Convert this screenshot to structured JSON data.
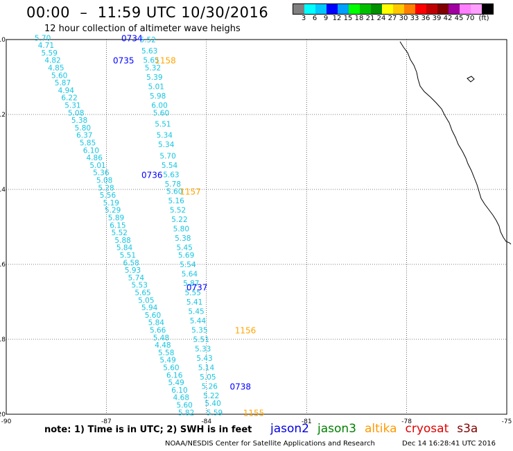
{
  "title": "00:00  –  11:59 UTC 10/30/2016",
  "subtitle": "12 hour collection of altimeter wave heighs",
  "legend": {
    "colors": [
      "#808080",
      "#00ffff",
      "#00c8ff",
      "#0000ff",
      "#00a0ff",
      "#00ff00",
      "#00c000",
      "#009000",
      "#ffff00",
      "#ffc800",
      "#ff8000",
      "#ff0000",
      "#c00000",
      "#800000",
      "#a000a0",
      "#ff80ff",
      "#ffa0ff",
      "#000000"
    ],
    "labels": [
      "3",
      "6",
      "9",
      "12",
      "15",
      "18",
      "21",
      "24",
      "27",
      "30",
      "33",
      "36",
      "39",
      "42",
      "45",
      "70",
      "(ft)"
    ]
  },
  "axes": {
    "x_ticks": [
      "-90",
      "-87",
      "-84",
      "-81",
      "-78",
      "-75"
    ],
    "y_ticks": [
      "10",
      "12",
      "14",
      "16",
      "18",
      "20"
    ]
  },
  "pass_labels": [
    {
      "text": "0734",
      "color": "#0000ff",
      "lon": -86.55,
      "lat": 9.95
    },
    {
      "text": "0735",
      "color": "#0000ff",
      "lon": -86.8,
      "lat": 10.55
    },
    {
      "text": "1158",
      "color": "#ffa500",
      "lon": -85.55,
      "lat": 10.55
    },
    {
      "text": "0736",
      "color": "#0000ff",
      "lon": -85.95,
      "lat": 13.6
    },
    {
      "text": "1157",
      "color": "#ffa500",
      "lon": -84.8,
      "lat": 14.05
    },
    {
      "text": "0737",
      "color": "#0000ff",
      "lon": -84.6,
      "lat": 16.6
    },
    {
      "text": "1156",
      "color": "#ffa500",
      "lon": -83.15,
      "lat": 17.75
    },
    {
      "text": "0738",
      "color": "#0000ff",
      "lon": -83.3,
      "lat": 19.25
    },
    {
      "text": "1155",
      "color": "#ffa500",
      "lon": -82.9,
      "lat": 19.95
    }
  ],
  "wave_labels": [
    {
      "t": "5.70",
      "lon": -89.15,
      "lat": 9.95
    },
    {
      "t": "4.71",
      "lon": -89.05,
      "lat": 10.15
    },
    {
      "t": "5.59",
      "lon": -88.95,
      "lat": 10.35
    },
    {
      "t": "4.82",
      "lon": -88.85,
      "lat": 10.55
    },
    {
      "t": "4.85",
      "lon": -88.75,
      "lat": 10.75
    },
    {
      "t": "5.60",
      "lon": -88.65,
      "lat": 10.95
    },
    {
      "t": "5.87",
      "lon": -88.55,
      "lat": 11.15
    },
    {
      "t": "4.94",
      "lon": -88.45,
      "lat": 11.35
    },
    {
      "t": "6.22",
      "lon": -88.35,
      "lat": 11.55
    },
    {
      "t": "5.31",
      "lon": -88.25,
      "lat": 11.75
    },
    {
      "t": "5.08",
      "lon": -88.15,
      "lat": 11.95
    },
    {
      "t": "5.38",
      "lon": -88.05,
      "lat": 12.15
    },
    {
      "t": "5.80",
      "lon": -87.95,
      "lat": 12.35
    },
    {
      "t": "6.37",
      "lon": -87.9,
      "lat": 12.55
    },
    {
      "t": "5.85",
      "lon": -87.8,
      "lat": 12.75
    },
    {
      "t": "6.10",
      "lon": -87.7,
      "lat": 12.95
    },
    {
      "t": "4.86",
      "lon": -87.6,
      "lat": 13.15
    },
    {
      "t": "5.01",
      "lon": -87.5,
      "lat": 13.35
    },
    {
      "t": "5.36",
      "lon": -87.4,
      "lat": 13.55
    },
    {
      "t": "5.08",
      "lon": -87.3,
      "lat": 13.75
    },
    {
      "t": "5.28",
      "lon": -87.25,
      "lat": 13.95
    },
    {
      "t": "5.56",
      "lon": -87.2,
      "lat": 14.15
    },
    {
      "t": "5.19",
      "lon": -87.1,
      "lat": 14.35
    },
    {
      "t": "5.29",
      "lon": -87.05,
      "lat": 14.55
    },
    {
      "t": "5.89",
      "lon": -86.95,
      "lat": 14.75
    },
    {
      "t": "6.15",
      "lon": -86.9,
      "lat": 14.95
    },
    {
      "t": "5.52",
      "lon": -86.85,
      "lat": 15.15
    },
    {
      "t": "5.88",
      "lon": -86.75,
      "lat": 15.35
    },
    {
      "t": "5.84",
      "lon": -86.7,
      "lat": 15.55
    },
    {
      "t": "5.51",
      "lon": -86.6,
      "lat": 15.75
    },
    {
      "t": "6.58",
      "lon": -86.5,
      "lat": 15.95
    },
    {
      "t": "5.93",
      "lon": -86.45,
      "lat": 16.15
    },
    {
      "t": "5.74",
      "lon": -86.35,
      "lat": 16.35
    },
    {
      "t": "5.53",
      "lon": -86.25,
      "lat": 16.55
    },
    {
      "t": "5.65",
      "lon": -86.15,
      "lat": 16.75
    },
    {
      "t": "5.05",
      "lon": -86.05,
      "lat": 16.95
    },
    {
      "t": "5.94",
      "lon": -85.95,
      "lat": 17.15
    },
    {
      "t": "5.60",
      "lon": -85.85,
      "lat": 17.35
    },
    {
      "t": "5.84",
      "lon": -85.75,
      "lat": 17.55
    },
    {
      "t": "5.66",
      "lon": -85.7,
      "lat": 17.75
    },
    {
      "t": "5.48",
      "lon": -85.6,
      "lat": 17.95
    },
    {
      "t": "4.48",
      "lon": -85.55,
      "lat": 18.15
    },
    {
      "t": "5.58",
      "lon": -85.45,
      "lat": 18.35
    },
    {
      "t": "5.49",
      "lon": -85.4,
      "lat": 18.55
    },
    {
      "t": "5.60",
      "lon": -85.3,
      "lat": 18.75
    },
    {
      "t": "6.16",
      "lon": -85.2,
      "lat": 18.95
    },
    {
      "t": "5.49",
      "lon": -85.15,
      "lat": 19.15
    },
    {
      "t": "6.10",
      "lon": -85.05,
      "lat": 19.35
    },
    {
      "t": "4.68",
      "lon": -85.0,
      "lat": 19.55
    },
    {
      "t": "5.60",
      "lon": -84.9,
      "lat": 19.75
    },
    {
      "t": "5.82",
      "lon": -84.85,
      "lat": 19.95
    },
    {
      "t": "5.52",
      "lon": -86.0,
      "lat": 10.0
    },
    {
      "t": "5.63",
      "lon": -85.95,
      "lat": 10.3
    },
    {
      "t": "5.65",
      "lon": -85.9,
      "lat": 10.55
    },
    {
      "t": "5.32",
      "lon": -85.85,
      "lat": 10.75
    },
    {
      "t": "5.39",
      "lon": -85.8,
      "lat": 11.0
    },
    {
      "t": "5.01",
      "lon": -85.75,
      "lat": 11.25
    },
    {
      "t": "5.98",
      "lon": -85.7,
      "lat": 11.5
    },
    {
      "t": "6.00",
      "lon": -85.65,
      "lat": 11.75
    },
    {
      "t": "5.60",
      "lon": -85.6,
      "lat": 11.95
    },
    {
      "t": "5.51",
      "lon": -85.55,
      "lat": 12.25
    },
    {
      "t": "5.34",
      "lon": -85.5,
      "lat": 12.55
    },
    {
      "t": "5.34",
      "lon": -85.45,
      "lat": 12.8
    },
    {
      "t": "5.70",
      "lon": -85.4,
      "lat": 13.1
    },
    {
      "t": "5.54",
      "lon": -85.35,
      "lat": 13.35
    },
    {
      "t": "5.63",
      "lon": -85.3,
      "lat": 13.6
    },
    {
      "t": "5.78",
      "lon": -85.25,
      "lat": 13.85
    },
    {
      "t": "5.60",
      "lon": -85.2,
      "lat": 14.05
    },
    {
      "t": "5.16",
      "lon": -85.15,
      "lat": 14.3
    },
    {
      "t": "5.52",
      "lon": -85.1,
      "lat": 14.55
    },
    {
      "t": "5.22",
      "lon": -85.05,
      "lat": 14.8
    },
    {
      "t": "5.80",
      "lon": -85.0,
      "lat": 15.05
    },
    {
      "t": "5.38",
      "lon": -84.95,
      "lat": 15.3
    },
    {
      "t": "5.45",
      "lon": -84.9,
      "lat": 15.55
    },
    {
      "t": "5.69",
      "lon": -84.85,
      "lat": 15.75
    },
    {
      "t": "5.54",
      "lon": -84.8,
      "lat": 16.0
    },
    {
      "t": "5.64",
      "lon": -84.75,
      "lat": 16.25
    },
    {
      "t": "5.87",
      "lon": -84.7,
      "lat": 16.5
    },
    {
      "t": "5.55",
      "lon": -84.65,
      "lat": 16.75
    },
    {
      "t": "5.41",
      "lon": -84.6,
      "lat": 17.0
    },
    {
      "t": "5.45",
      "lon": -84.55,
      "lat": 17.25
    },
    {
      "t": "5.44",
      "lon": -84.5,
      "lat": 17.5
    },
    {
      "t": "5.35",
      "lon": -84.45,
      "lat": 17.75
    },
    {
      "t": "5.51",
      "lon": -84.4,
      "lat": 18.0
    },
    {
      "t": "5.33",
      "lon": -84.35,
      "lat": 18.25
    },
    {
      "t": "5.43",
      "lon": -84.3,
      "lat": 18.5
    },
    {
      "t": "5.14",
      "lon": -84.25,
      "lat": 18.75
    },
    {
      "t": "5.05",
      "lon": -84.2,
      "lat": 19.0
    },
    {
      "t": "5.26",
      "lon": -84.15,
      "lat": 19.25
    },
    {
      "t": "5.22",
      "lon": -84.1,
      "lat": 19.5
    },
    {
      "t": "5.40",
      "lon": -84.05,
      "lat": 19.7
    },
    {
      "t": "5.59",
      "lon": -84.0,
      "lat": 19.95
    }
  ],
  "note": "note: 1) Time is in UTC; 2) SWH is in feet",
  "satellites": [
    {
      "name": "jason2",
      "color": "#0000e0"
    },
    {
      "name": "jason3",
      "color": "#008000"
    },
    {
      "name": "altika",
      "color": "#ff9900"
    },
    {
      "name": "cryosat",
      "color": "#e00000"
    },
    {
      "name": "s3a",
      "color": "#800000"
    }
  ],
  "credit": "NOAA/NESDIS Center for Satellite Applications and Research",
  "timestamp": "Dec 14 16:28:41 UTC 2016"
}
